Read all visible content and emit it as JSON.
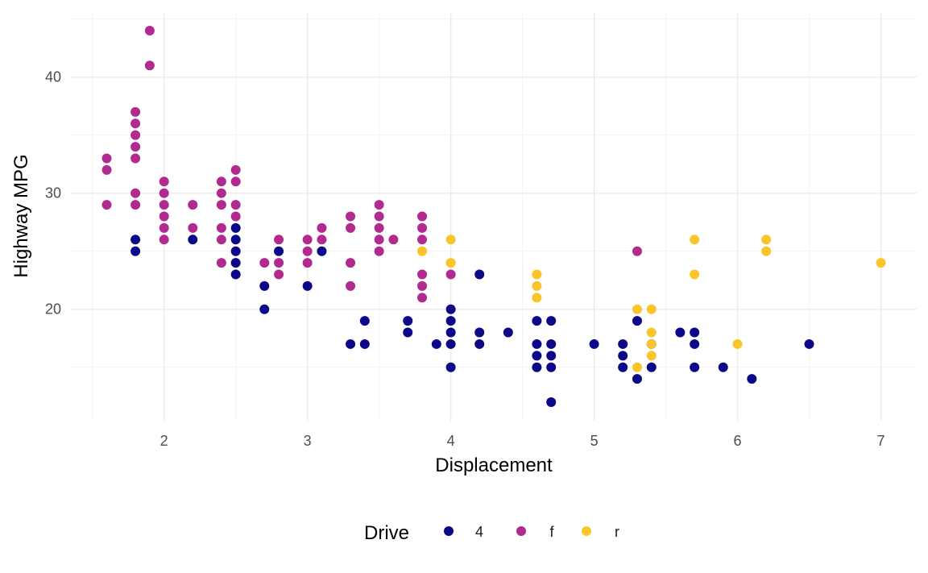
{
  "chart_data": {
    "type": "scatter",
    "title": "",
    "xlabel": "Displacement",
    "ylabel": "Highway MPG",
    "xlim": [
      1.35,
      7.25
    ],
    "ylim": [
      10.4,
      45.6
    ],
    "x_ticks": [
      2,
      3,
      4,
      5,
      6,
      7
    ],
    "y_ticks": [
      20,
      30,
      40
    ],
    "grid": true,
    "legend": {
      "title": "Drive",
      "position": "bottom"
    },
    "series": [
      {
        "name": "4",
        "color": "#0d0887",
        "points": [
          [
            1.8,
            26
          ],
          [
            1.8,
            25
          ],
          [
            2.2,
            26
          ],
          [
            2.5,
            27
          ],
          [
            2.5,
            26
          ],
          [
            2.5,
            25
          ],
          [
            2.5,
            24
          ],
          [
            2.5,
            23
          ],
          [
            2.7,
            22
          ],
          [
            2.7,
            20
          ],
          [
            2.8,
            25
          ],
          [
            3.0,
            22
          ],
          [
            3.1,
            25
          ],
          [
            3.3,
            17
          ],
          [
            3.4,
            19
          ],
          [
            3.4,
            17
          ],
          [
            3.7,
            19
          ],
          [
            3.7,
            18
          ],
          [
            3.9,
            17
          ],
          [
            4.0,
            20
          ],
          [
            4.0,
            19
          ],
          [
            4.0,
            18
          ],
          [
            4.0,
            17
          ],
          [
            4.0,
            15
          ],
          [
            4.2,
            23
          ],
          [
            4.2,
            18
          ],
          [
            4.2,
            17
          ],
          [
            4.4,
            18
          ],
          [
            4.6,
            19
          ],
          [
            4.6,
            17
          ],
          [
            4.6,
            16
          ],
          [
            4.6,
            15
          ],
          [
            4.7,
            19
          ],
          [
            4.7,
            17
          ],
          [
            4.7,
            16
          ],
          [
            4.7,
            15
          ],
          [
            4.7,
            12
          ],
          [
            5.0,
            17
          ],
          [
            5.2,
            17
          ],
          [
            5.2,
            16
          ],
          [
            5.2,
            15
          ],
          [
            5.3,
            19
          ],
          [
            5.3,
            14
          ],
          [
            5.4,
            17
          ],
          [
            5.4,
            15
          ],
          [
            5.6,
            18
          ],
          [
            5.7,
            18
          ],
          [
            5.7,
            17
          ],
          [
            5.7,
            15
          ],
          [
            5.9,
            15
          ],
          [
            6.1,
            14
          ],
          [
            6.5,
            17
          ]
        ]
      },
      {
        "name": "f",
        "color": "#b12a90",
        "points": [
          [
            1.6,
            33
          ],
          [
            1.6,
            32
          ],
          [
            1.6,
            29
          ],
          [
            1.8,
            37
          ],
          [
            1.8,
            36
          ],
          [
            1.8,
            35
          ],
          [
            1.8,
            34
          ],
          [
            1.8,
            33
          ],
          [
            1.8,
            30
          ],
          [
            1.8,
            29
          ],
          [
            1.9,
            44
          ],
          [
            1.9,
            41
          ],
          [
            2.0,
            31
          ],
          [
            2.0,
            30
          ],
          [
            2.0,
            29
          ],
          [
            2.0,
            28
          ],
          [
            2.0,
            27
          ],
          [
            2.0,
            26
          ],
          [
            2.2,
            29
          ],
          [
            2.2,
            27
          ],
          [
            2.4,
            31
          ],
          [
            2.4,
            30
          ],
          [
            2.4,
            29
          ],
          [
            2.4,
            27
          ],
          [
            2.4,
            26
          ],
          [
            2.4,
            24
          ],
          [
            2.5,
            32
          ],
          [
            2.5,
            31
          ],
          [
            2.5,
            29
          ],
          [
            2.5,
            28
          ],
          [
            2.7,
            24
          ],
          [
            2.8,
            26
          ],
          [
            2.8,
            24
          ],
          [
            2.8,
            23
          ],
          [
            3.0,
            26
          ],
          [
            3.0,
            25
          ],
          [
            3.0,
            24
          ],
          [
            3.1,
            27
          ],
          [
            3.1,
            26
          ],
          [
            3.3,
            28
          ],
          [
            3.3,
            27
          ],
          [
            3.3,
            24
          ],
          [
            3.3,
            22
          ],
          [
            3.5,
            29
          ],
          [
            3.5,
            28
          ],
          [
            3.5,
            27
          ],
          [
            3.5,
            26
          ],
          [
            3.5,
            25
          ],
          [
            3.6,
            26
          ],
          [
            3.8,
            28
          ],
          [
            3.8,
            27
          ],
          [
            3.8,
            26
          ],
          [
            3.8,
            23
          ],
          [
            3.8,
            22
          ],
          [
            3.8,
            21
          ],
          [
            4.0,
            23
          ],
          [
            5.3,
            25
          ]
        ]
      },
      {
        "name": "r",
        "color": "#f9c52a",
        "points": [
          [
            3.8,
            25
          ],
          [
            4.0,
            26
          ],
          [
            4.0,
            24
          ],
          [
            4.6,
            23
          ],
          [
            4.6,
            22
          ],
          [
            4.6,
            21
          ],
          [
            5.3,
            20
          ],
          [
            5.3,
            15
          ],
          [
            5.4,
            20
          ],
          [
            5.4,
            18
          ],
          [
            5.4,
            17
          ],
          [
            5.4,
            16
          ],
          [
            5.7,
            26
          ],
          [
            5.7,
            23
          ],
          [
            6.0,
            17
          ],
          [
            6.2,
            26
          ],
          [
            6.2,
            25
          ],
          [
            7.0,
            24
          ]
        ]
      }
    ]
  }
}
